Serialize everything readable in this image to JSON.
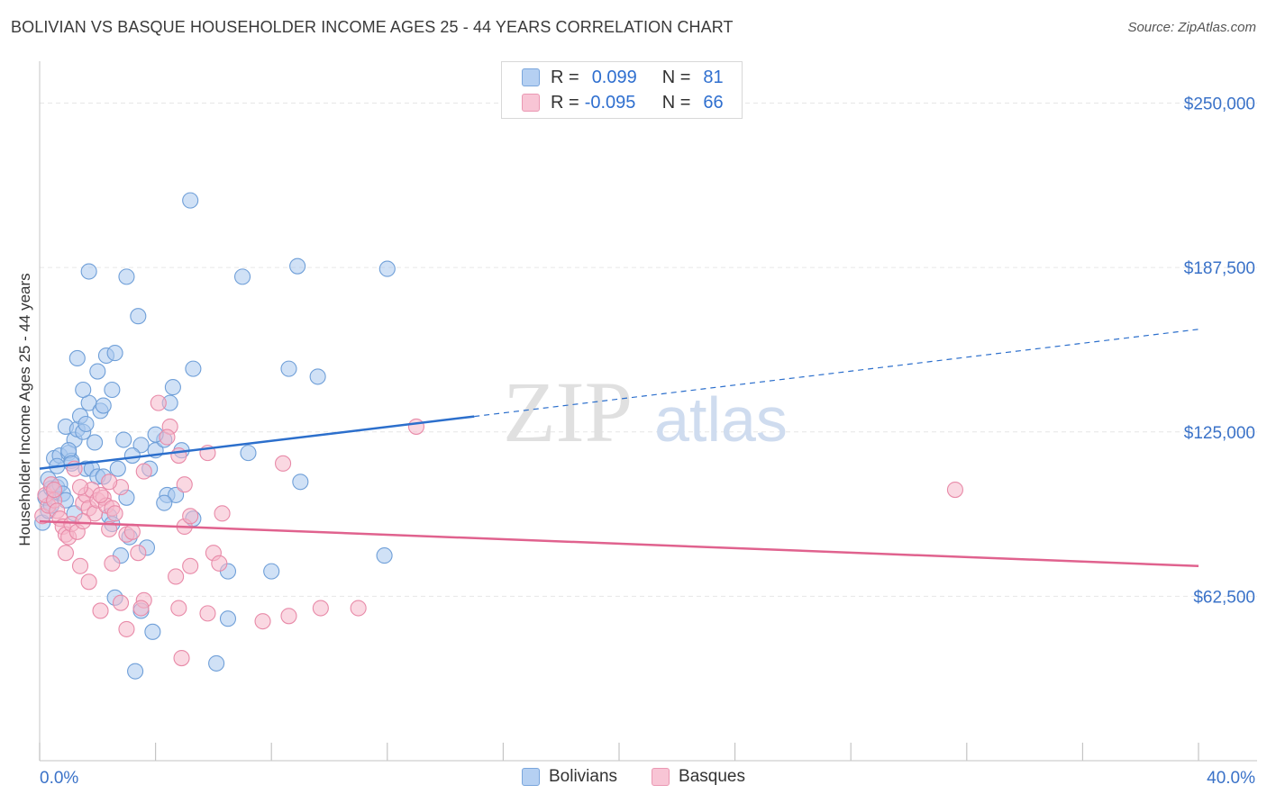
{
  "header": {
    "title": "BOLIVIAN VS BASQUE HOUSEHOLDER INCOME AGES 25 - 44 YEARS CORRELATION CHART",
    "source": "Source: ZipAtlas.com"
  },
  "watermark": {
    "zip": "ZIP",
    "atlas": "atlas"
  },
  "legend": {
    "rows": [
      {
        "r_label": "R =",
        "r_value": "0.099",
        "n_label": "N =",
        "n_value": "81"
      },
      {
        "r_label": "R =",
        "r_value": "-0.095",
        "n_label": "N =",
        "n_value": "66"
      }
    ]
  },
  "bottom_legend": [
    "Bolivians",
    "Basques"
  ],
  "colors": {
    "bolivians_fill": "#a9c8ef",
    "bolivians_stroke": "#6f9fd8",
    "bolivians_line": "#2c6fcc",
    "basques_fill": "#f5b8cb",
    "basques_stroke": "#e88aa8",
    "basques_line": "#e0628e",
    "tick_label": "#3a72c8",
    "grid": "#e6e6e6"
  },
  "chart_data": {
    "type": "scatter",
    "title": "BOLIVIAN VS BASQUE HOUSEHOLDER INCOME AGES 25 - 44 YEARS CORRELATION CHART",
    "xlabel": "",
    "ylabel": "Householder Income Ages 25 - 44 years",
    "xlim": [
      0,
      40
    ],
    "ylim": [
      0,
      262500
    ],
    "x_tick_labels": [
      "0.0%",
      "40.0%"
    ],
    "y_ticks": [
      62500,
      125000,
      187500,
      250000
    ],
    "y_tick_labels": [
      "$62,500",
      "$125,000",
      "$187,500",
      "$250,000"
    ],
    "grid": true,
    "legend_position": "top-center",
    "series": [
      {
        "name": "Bolivians",
        "r": 0.099,
        "n": 81,
        "trend": {
          "x": [
            0,
            40
          ],
          "y": [
            111000,
            164000
          ],
          "solid_until_x": 15
        },
        "points": [
          [
            0.1,
            90500
          ],
          [
            0.3,
            95000
          ],
          [
            0.2,
            100000
          ],
          [
            0.4,
            103500
          ],
          [
            0.3,
            107000
          ],
          [
            0.5,
            102000
          ],
          [
            0.6,
            104000
          ],
          [
            0.4,
            97000
          ],
          [
            0.7,
            105000
          ],
          [
            0.8,
            101500
          ],
          [
            0.5,
            115000
          ],
          [
            0.7,
            116000
          ],
          [
            1.0,
            117000
          ],
          [
            1.1,
            114000
          ],
          [
            0.9,
            127000
          ],
          [
            1.2,
            122000
          ],
          [
            1.0,
            118000
          ],
          [
            1.3,
            126000
          ],
          [
            1.5,
            125000
          ],
          [
            1.4,
            131000
          ],
          [
            1.1,
            113000
          ],
          [
            1.6,
            111000
          ],
          [
            1.8,
            111000
          ],
          [
            2.0,
            108000
          ],
          [
            2.2,
            108000
          ],
          [
            1.7,
            136000
          ],
          [
            2.1,
            133000
          ],
          [
            1.5,
            141000
          ],
          [
            2.5,
            141000
          ],
          [
            2.0,
            148000
          ],
          [
            1.3,
            153000
          ],
          [
            2.3,
            154000
          ],
          [
            2.6,
            155000
          ],
          [
            1.7,
            186000
          ],
          [
            3.0,
            184000
          ],
          [
            3.4,
            169000
          ],
          [
            2.7,
            111000
          ],
          [
            3.5,
            120000
          ],
          [
            4.0,
            118000
          ],
          [
            4.3,
            122000
          ],
          [
            4.0,
            124000
          ],
          [
            3.2,
            116000
          ],
          [
            4.5,
            136000
          ],
          [
            4.6,
            142000
          ],
          [
            5.3,
            149000
          ],
          [
            4.9,
            118000
          ],
          [
            4.4,
            101000
          ],
          [
            4.7,
            101000
          ],
          [
            4.3,
            98000
          ],
          [
            5.3,
            92000
          ],
          [
            3.0,
            100000
          ],
          [
            2.4,
            93000
          ],
          [
            2.5,
            90000
          ],
          [
            3.1,
            85000
          ],
          [
            2.8,
            78000
          ],
          [
            3.7,
            81000
          ],
          [
            6.5,
            72000
          ],
          [
            8.0,
            72000
          ],
          [
            2.6,
            62000
          ],
          [
            3.5,
            57000
          ],
          [
            3.9,
            49000
          ],
          [
            6.5,
            54000
          ],
          [
            3.3,
            34000
          ],
          [
            6.1,
            37000
          ],
          [
            7.2,
            117000
          ],
          [
            9.0,
            106000
          ],
          [
            8.6,
            149000
          ],
          [
            9.6,
            146000
          ],
          [
            8.9,
            188000
          ],
          [
            12.0,
            187000
          ],
          [
            7.0,
            184000
          ],
          [
            5.2,
            213000
          ],
          [
            11.9,
            78000
          ],
          [
            1.9,
            121000
          ],
          [
            0.9,
            99000
          ],
          [
            1.2,
            94000
          ],
          [
            2.9,
            122000
          ],
          [
            1.6,
            128000
          ],
          [
            3.8,
            111000
          ],
          [
            2.2,
            135000
          ],
          [
            0.6,
            112000
          ]
        ]
      },
      {
        "name": "Basques",
        "r": -0.095,
        "n": 66,
        "trend": {
          "x": [
            0,
            40
          ],
          "y": [
            91000,
            74000
          ]
        },
        "points": [
          [
            0.1,
            93000
          ],
          [
            0.3,
            97000
          ],
          [
            0.2,
            101000
          ],
          [
            0.4,
            105000
          ],
          [
            0.5,
            99000
          ],
          [
            0.6,
            95000
          ],
          [
            0.7,
            92000
          ],
          [
            0.8,
            89000
          ],
          [
            0.5,
            103000
          ],
          [
            0.9,
            86000
          ],
          [
            1.0,
            85000
          ],
          [
            1.1,
            90000
          ],
          [
            1.3,
            87000
          ],
          [
            1.5,
            98000
          ],
          [
            1.6,
            101000
          ],
          [
            1.7,
            96000
          ],
          [
            1.8,
            103000
          ],
          [
            1.9,
            94000
          ],
          [
            2.0,
            99000
          ],
          [
            2.2,
            100000
          ],
          [
            2.3,
            97000
          ],
          [
            2.4,
            88000
          ],
          [
            2.5,
            96000
          ],
          [
            2.6,
            94000
          ],
          [
            2.8,
            104000
          ],
          [
            3.0,
            86000
          ],
          [
            3.2,
            87000
          ],
          [
            3.4,
            79000
          ],
          [
            3.6,
            110000
          ],
          [
            1.4,
            104000
          ],
          [
            0.9,
            79000
          ],
          [
            1.4,
            74000
          ],
          [
            1.7,
            68000
          ],
          [
            2.5,
            75000
          ],
          [
            3.6,
            61000
          ],
          [
            3.5,
            58000
          ],
          [
            2.1,
            57000
          ],
          [
            3.0,
            50000
          ],
          [
            4.7,
            70000
          ],
          [
            5.2,
            74000
          ],
          [
            4.8,
            58000
          ],
          [
            5.0,
            89000
          ],
          [
            5.2,
            93000
          ],
          [
            6.3,
            94000
          ],
          [
            5.8,
            117000
          ],
          [
            6.0,
            79000
          ],
          [
            5.8,
            56000
          ],
          [
            6.2,
            75000
          ],
          [
            7.7,
            53000
          ],
          [
            8.6,
            55000
          ],
          [
            9.7,
            58000
          ],
          [
            11.0,
            58000
          ],
          [
            4.5,
            127000
          ],
          [
            4.1,
            136000
          ],
          [
            4.4,
            123000
          ],
          [
            4.8,
            116000
          ],
          [
            5.0,
            105000
          ],
          [
            8.4,
            113000
          ],
          [
            13.0,
            127000
          ],
          [
            31.6,
            103000
          ],
          [
            4.9,
            39000
          ],
          [
            2.8,
            60000
          ],
          [
            2.4,
            106000
          ],
          [
            1.2,
            111000
          ],
          [
            2.1,
            101000
          ],
          [
            1.5,
            91000
          ]
        ]
      }
    ]
  }
}
